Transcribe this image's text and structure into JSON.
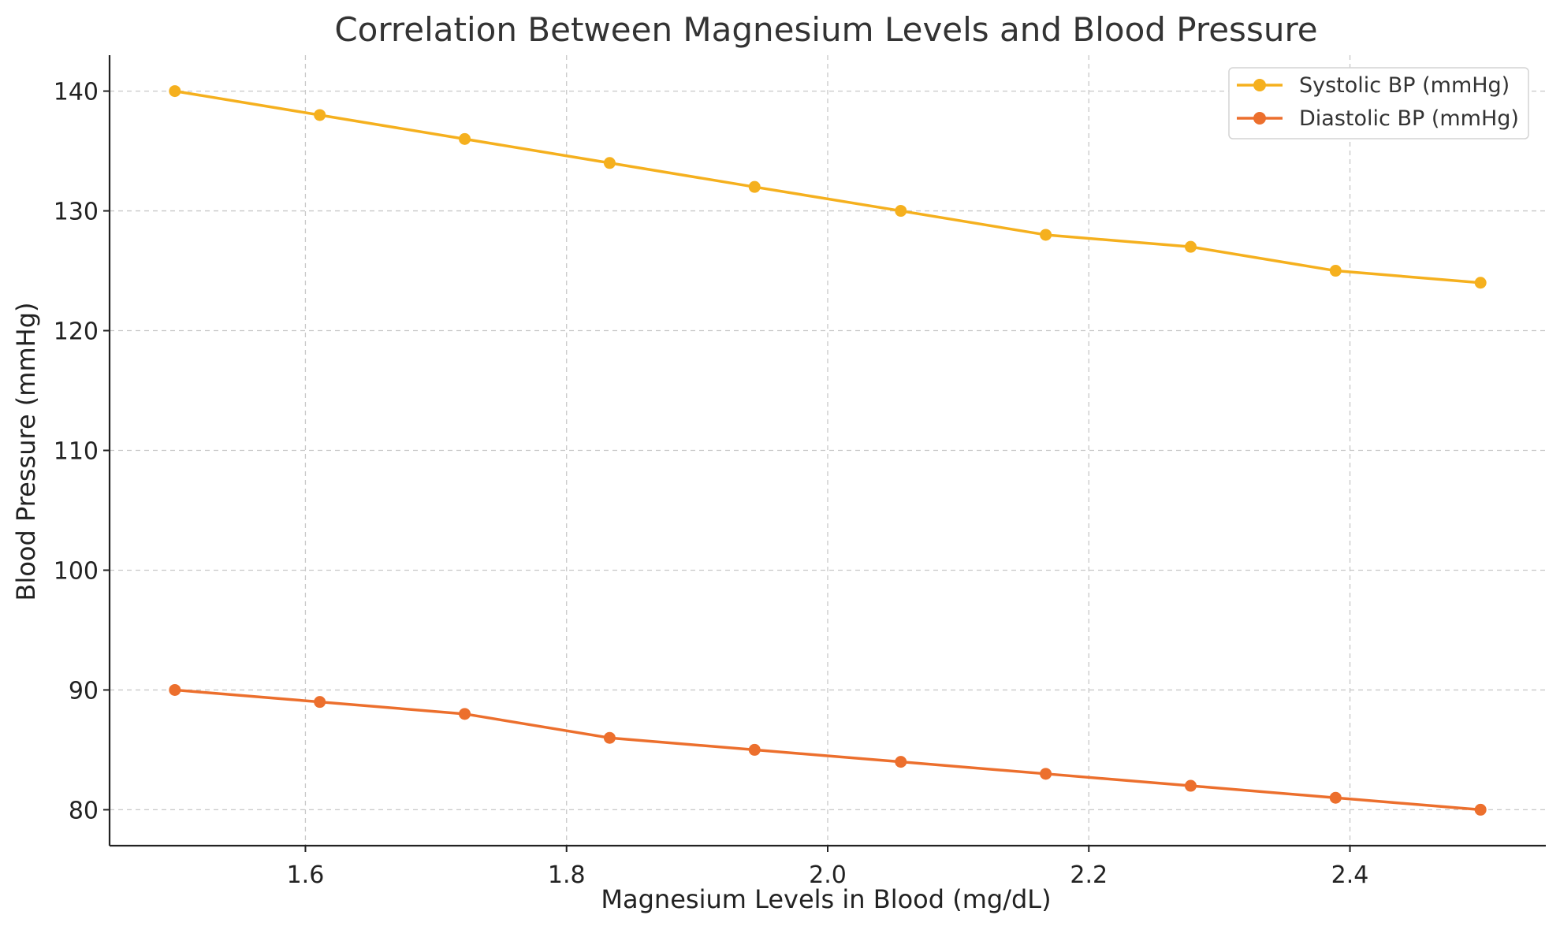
{
  "chart_data": {
    "type": "line",
    "title": "Correlation Between Magnesium Levels and Blood Pressure",
    "xlabel": "Magnesium Levels in Blood (mg/dL)",
    "ylabel": "Blood Pressure (mmHg)",
    "xlim": [
      1.45,
      2.55
    ],
    "ylim": [
      77,
      143
    ],
    "x_ticks": [
      "1.6",
      "1.8",
      "2.0",
      "2.2",
      "2.4"
    ],
    "y_ticks": [
      "80",
      "90",
      "100",
      "110",
      "120",
      "130",
      "140"
    ],
    "grid": true,
    "legend_position": "top-right",
    "x": [
      1.5,
      1.611,
      1.722,
      1.833,
      1.944,
      2.056,
      2.167,
      2.278,
      2.389,
      2.5
    ],
    "series": [
      {
        "name": "Systolic BP (mmHg)",
        "color": "#F5B01E",
        "marker": "circle",
        "values": [
          140,
          138,
          136,
          134,
          132,
          130,
          128,
          127,
          125,
          124
        ]
      },
      {
        "name": "Diastolic BP (mmHg)",
        "color": "#EC6F2D",
        "marker": "circle",
        "values": [
          90,
          89,
          88,
          86,
          85,
          84,
          83,
          82,
          81,
          80
        ]
      }
    ]
  }
}
